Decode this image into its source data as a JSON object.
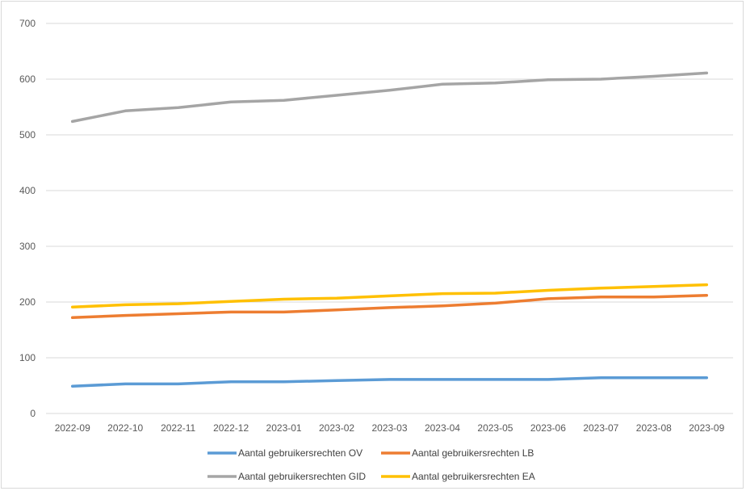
{
  "chart_data": {
    "type": "line",
    "title": "",
    "xlabel": "",
    "ylabel": "",
    "ylim": [
      0,
      700
    ],
    "yticks": [
      0,
      100,
      200,
      300,
      400,
      500,
      600,
      700
    ],
    "grid": true,
    "legend_position": "bottom",
    "categories": [
      "2022-09",
      "2022-10",
      "2022-11",
      "2022-12",
      "2023-01",
      "2023-02",
      "2023-03",
      "2023-04",
      "2023-05",
      "2023-06",
      "2023-07",
      "2023-08",
      "2023-09"
    ],
    "series": [
      {
        "name": "Aantal gebruikersrechten OV",
        "color": "#5b9bd5",
        "values": [
          49,
          53,
          53,
          57,
          57,
          59,
          61,
          61,
          61,
          61,
          64,
          64,
          64
        ]
      },
      {
        "name": "Aantal gebruikersrechten LB",
        "color": "#ed7d31",
        "values": [
          172,
          176,
          179,
          182,
          182,
          186,
          190,
          193,
          198,
          206,
          209,
          209,
          212
        ]
      },
      {
        "name": "Aantal gebruikersrechten GID",
        "color": "#a5a5a5",
        "values": [
          524,
          543,
          549,
          559,
          562,
          571,
          580,
          591,
          593,
          599,
          600,
          605,
          611
        ]
      },
      {
        "name": "Aantal gebruikersrechten EA",
        "color": "#ffc000",
        "values": [
          191,
          195,
          197,
          201,
          205,
          207,
          211,
          215,
          216,
          221,
          225,
          228,
          231
        ]
      }
    ]
  }
}
